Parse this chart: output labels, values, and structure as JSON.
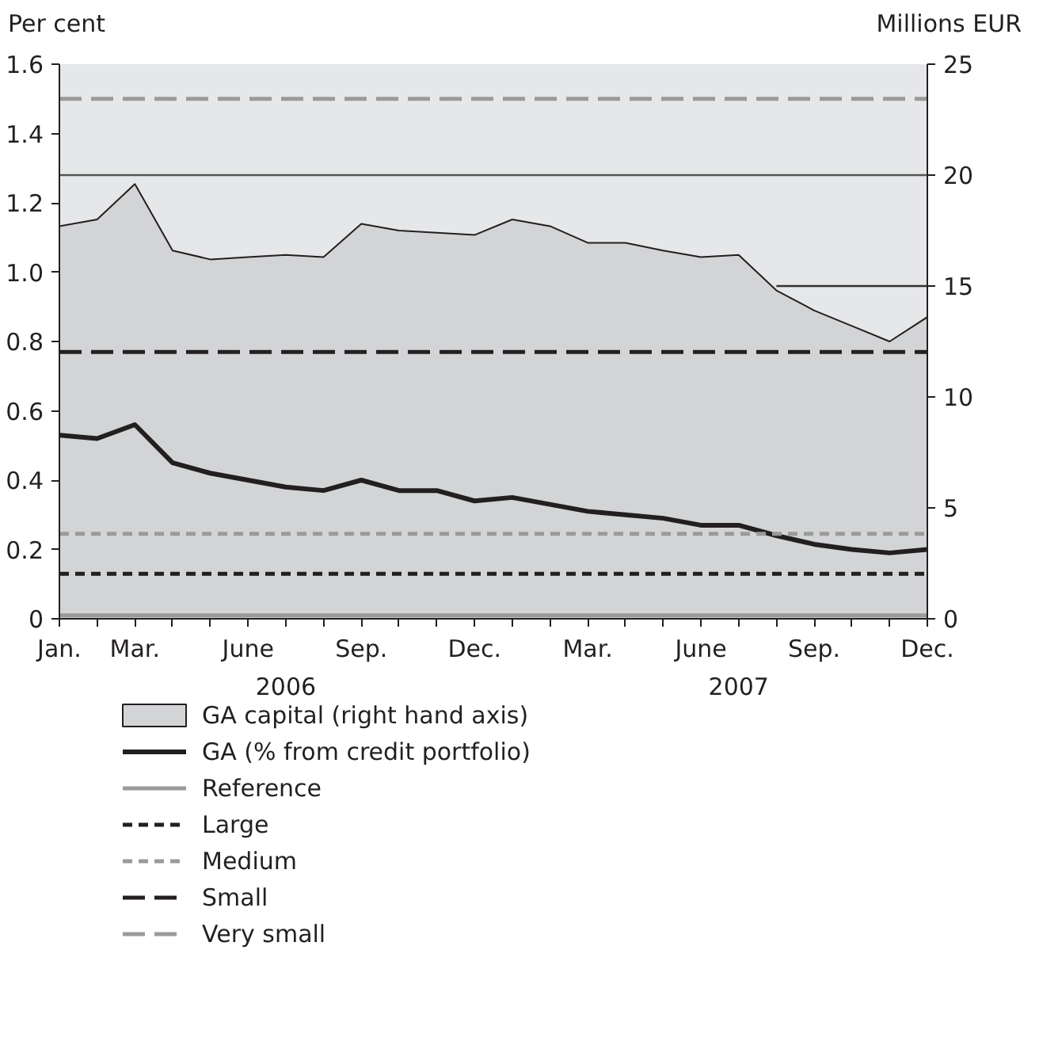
{
  "chart_data": {
    "type": "area",
    "ylabel": "Per cent",
    "y2label": "Millions EUR",
    "x": [
      "2006-01",
      "2006-02",
      "2006-03",
      "2006-04",
      "2006-05",
      "2006-06",
      "2006-07",
      "2006-08",
      "2006-09",
      "2006-10",
      "2006-11",
      "2006-12",
      "2007-01",
      "2007-02",
      "2007-03",
      "2007-04",
      "2007-05",
      "2007-06",
      "2007-07",
      "2007-08",
      "2007-09",
      "2007-10",
      "2007-11",
      "2007-12"
    ],
    "series": [
      {
        "name": "GA capital (right hand axis)",
        "type": "area",
        "axis": "y2",
        "color": "#d3d4d6",
        "values": [
          17.7,
          18.0,
          19.6,
          16.6,
          16.2,
          16.3,
          16.4,
          16.3,
          17.8,
          17.5,
          17.4,
          17.3,
          18.0,
          17.7,
          16.95,
          16.95,
          16.6,
          16.3,
          16.4,
          14.8,
          13.9,
          13.2,
          12.5,
          13.6
        ]
      },
      {
        "type": "line",
        "axis": "y2",
        "color": "#555555",
        "values": [
          20,
          20,
          20,
          20,
          20,
          20,
          20,
          20,
          20,
          20,
          20,
          20,
          20,
          20,
          20,
          20,
          20,
          20,
          20,
          20,
          20,
          20,
          20,
          20
        ]
      },
      {
        "type": "line",
        "axis": "y2",
        "color": "#333333",
        "values": [
          null,
          null,
          null,
          null,
          null,
          null,
          null,
          null,
          null,
          null,
          null,
          null,
          null,
          null,
          null,
          null,
          null,
          null,
          null,
          15,
          15,
          15,
          15,
          15
        ]
      },
      {
        "name": "GA (% from credit portfolio)",
        "type": "line",
        "color": "#231f20",
        "values": [
          0.53,
          0.52,
          0.56,
          0.45,
          0.42,
          0.4,
          0.38,
          0.37,
          0.4,
          0.37,
          0.37,
          0.34,
          0.35,
          0.33,
          0.31,
          0.3,
          0.29,
          0.27,
          0.27,
          0.24,
          0.215,
          0.2,
          0.19,
          0.2
        ]
      }
    ],
    "ref_lines": [
      {
        "axis": "y",
        "value": 0.01,
        "label": "Reference",
        "color": "#9a9a9a",
        "line_style": "solid"
      },
      {
        "axis": "y",
        "value": 0.13,
        "label": "Large",
        "color": "#231f20",
        "line_style": "dotted"
      },
      {
        "axis": "y",
        "value": 0.245,
        "label": "Medium",
        "color": "#9a9a9a",
        "line_style": "dotted"
      },
      {
        "axis": "y",
        "value": 0.77,
        "label": "Small",
        "color": "#231f20",
        "line_style": "dashed"
      },
      {
        "axis": "y",
        "value": 1.5,
        "label": "Very small",
        "color": "#9a9a9a",
        "line_style": "dashed"
      }
    ],
    "xlim": [
      "2006-01",
      "2007-12"
    ],
    "xticks": [
      {
        "value": "2006-01",
        "label": "Jan."
      },
      {
        "value": "2006-02",
        "label": null
      },
      {
        "value": "2006-03",
        "label": "Mar."
      },
      {
        "value": "2006-04",
        "label": null
      },
      {
        "value": "2006-05",
        "label": null
      },
      {
        "value": "2006-06",
        "label": "June"
      },
      {
        "value": "2006-07",
        "label": null
      },
      {
        "value": "2006-08",
        "label": null
      },
      {
        "value": "2006-09",
        "label": "Sep."
      },
      {
        "value": "2006-10",
        "label": null
      },
      {
        "value": "2006-11",
        "label": null
      },
      {
        "value": "2006-12",
        "label": "Dec."
      },
      {
        "value": "2007-01",
        "label": null
      },
      {
        "value": "2007-02",
        "label": null
      },
      {
        "value": "2007-03",
        "label": "Mar."
      },
      {
        "value": "2007-04",
        "label": null
      },
      {
        "value": "2007-05",
        "label": null
      },
      {
        "value": "2007-06",
        "label": "June"
      },
      {
        "value": "2007-07",
        "label": null
      },
      {
        "value": "2007-08",
        "label": null
      },
      {
        "value": "2007-09",
        "label": "Sep."
      },
      {
        "value": "2007-10",
        "label": null
      },
      {
        "value": "2007-11",
        "label": null
      },
      {
        "value": "2007-12",
        "label": "Dec."
      }
    ],
    "ylim": [
      0,
      1.6
    ],
    "yticks": [
      0,
      0.2,
      0.4,
      0.6,
      0.8,
      {
        "value": 1.0,
        "label": "1.0"
      },
      1.2,
      1.4,
      1.6
    ],
    "y2lim": [
      0,
      25
    ],
    "y2ticks": [
      0,
      5,
      10,
      15,
      20,
      25
    ],
    "annotations": [
      "2006",
      "2007"
    ],
    "legend": "bottom"
  }
}
